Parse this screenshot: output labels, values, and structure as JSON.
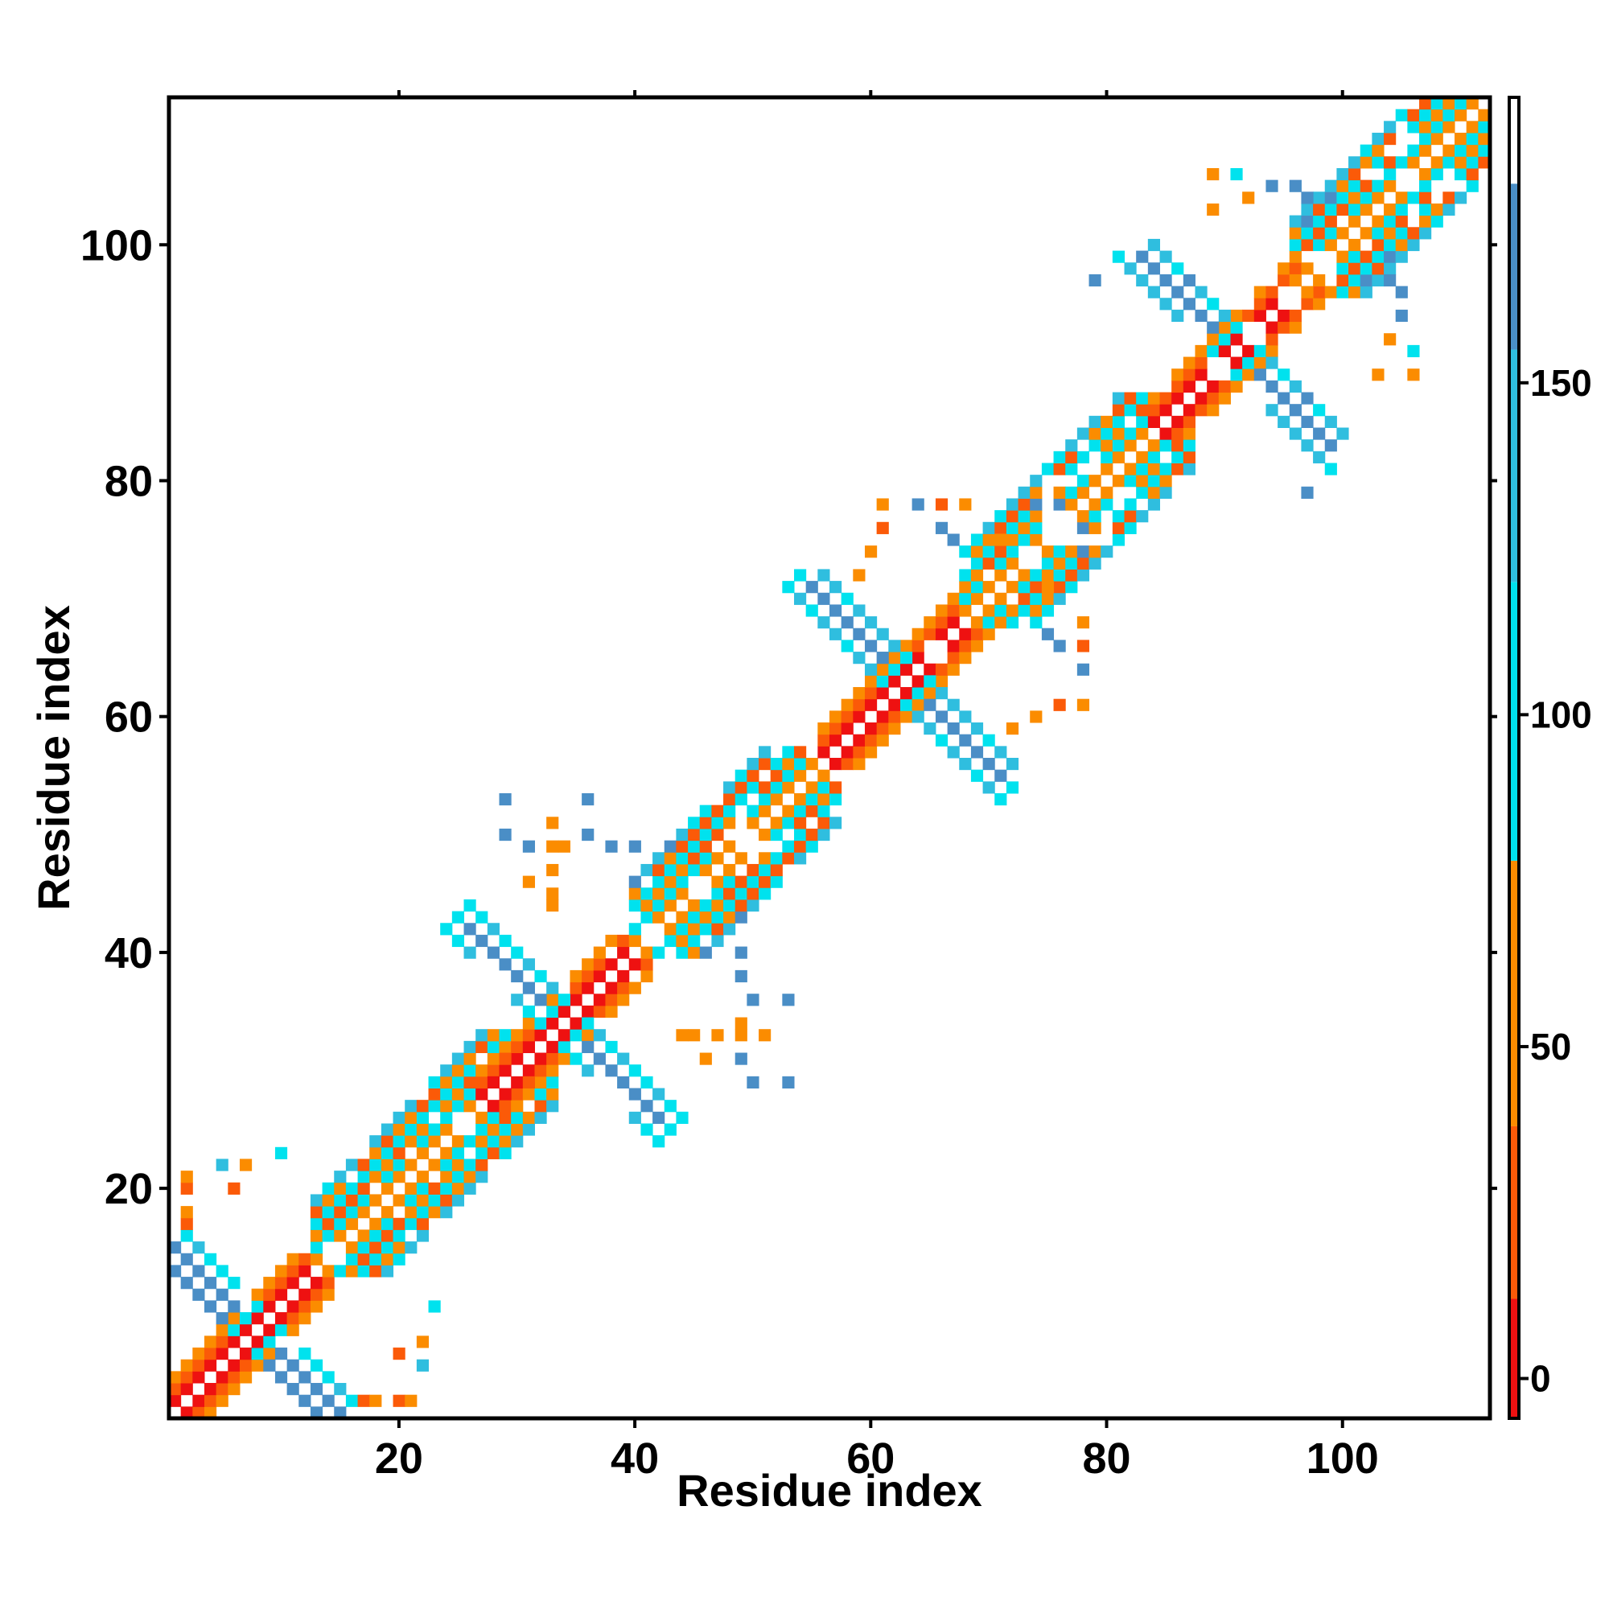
{
  "chart_data": {
    "type": "heatmap",
    "xlabel": "Residue index",
    "ylabel": "Residue index",
    "xlim": [
      0.5,
      112.5
    ],
    "ylim": [
      0.5,
      112.5
    ],
    "x_ticks": [
      20,
      40,
      60,
      80,
      100
    ],
    "y_ticks": [
      20,
      40,
      60,
      80,
      100
    ],
    "colorbar": {
      "ticks": [
        0,
        50,
        100,
        150
      ],
      "range": [
        -6,
        193
      ],
      "bands": [
        {
          "from": -6,
          "to": 12,
          "color": "#ee1111"
        },
        {
          "from": 12,
          "to": 38,
          "color": "#fb5a08"
        },
        {
          "from": 38,
          "to": 78,
          "color": "#fb8c00"
        },
        {
          "from": 78,
          "to": 120,
          "color": "#00e2ee"
        },
        {
          "from": 120,
          "to": 155,
          "color": "#2fbedf"
        },
        {
          "from": 155,
          "to": 180,
          "color": "#4a8ec6"
        },
        {
          "from": 180,
          "to": 193,
          "color": "#ffffff"
        }
      ]
    },
    "grid": false,
    "diagonal_blocks": [
      {
        "name": "beta-hairpin",
        "start": 1,
        "end": 14,
        "type": "hairpin"
      },
      {
        "name": "helix",
        "start": 13,
        "end": 33,
        "type": "helix"
      },
      {
        "name": "beta-hairpin",
        "start": 27,
        "end": 41,
        "type": "hairpin"
      },
      {
        "name": "helix",
        "start": 40,
        "end": 57,
        "type": "helix"
      },
      {
        "name": "beta-hairpin",
        "start": 56,
        "end": 70,
        "type": "hairpin"
      },
      {
        "name": "helix",
        "start": 68,
        "end": 87,
        "type": "helix"
      },
      {
        "name": "beta-hairpin",
        "start": 84,
        "end": 98,
        "type": "hairpin"
      },
      {
        "name": "helix",
        "start": 96,
        "end": 112,
        "type": "helix"
      }
    ],
    "scattered_cells": [
      [
        10,
        23,
        110
      ],
      [
        7,
        22,
        45
      ],
      [
        6,
        20,
        35
      ],
      [
        17,
        2,
        30
      ],
      [
        18,
        2,
        40
      ],
      [
        20,
        2,
        35
      ],
      [
        21,
        2,
        45
      ],
      [
        22,
        5,
        130
      ],
      [
        33,
        44,
        55
      ],
      [
        31,
        46,
        45
      ],
      [
        34,
        49,
        45
      ],
      [
        36,
        53,
        160
      ],
      [
        36,
        50,
        160
      ],
      [
        38,
        49,
        160
      ],
      [
        40,
        49,
        160
      ],
      [
        49,
        31,
        160
      ],
      [
        49,
        33,
        160
      ],
      [
        50,
        29,
        160
      ],
      [
        53,
        29,
        160
      ],
      [
        45,
        33,
        45
      ],
      [
        47,
        33,
        55
      ],
      [
        49,
        33,
        55
      ],
      [
        51,
        33,
        55
      ],
      [
        66,
        78,
        30
      ],
      [
        68,
        78,
        45
      ],
      [
        71,
        75,
        45
      ],
      [
        74,
        78,
        160
      ],
      [
        76,
        78,
        160
      ],
      [
        77,
        77,
        45
      ],
      [
        75,
        67,
        160
      ],
      [
        76,
        66,
        160
      ],
      [
        78,
        64,
        160
      ],
      [
        78,
        61,
        40
      ],
      [
        76,
        61,
        35
      ],
      [
        74,
        60,
        45
      ],
      [
        72,
        59,
        45
      ],
      [
        96,
        105,
        110
      ],
      [
        94,
        105,
        45
      ],
      [
        92,
        104,
        45
      ],
      [
        97,
        104,
        160
      ],
      [
        99,
        104,
        160
      ],
      [
        79,
        97,
        160
      ],
      [
        97,
        79,
        160
      ],
      [
        102,
        97,
        160
      ],
      [
        105,
        96,
        160
      ],
      [
        105,
        94,
        160
      ],
      [
        106,
        91,
        110
      ],
      [
        103,
        89,
        45
      ],
      [
        106,
        89,
        45
      ]
    ]
  }
}
